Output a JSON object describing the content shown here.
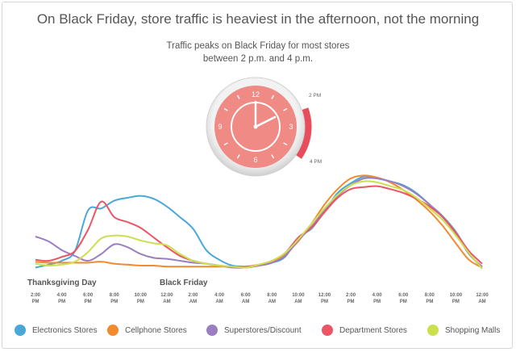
{
  "title": "On Black Friday, store traffic is heaviest in the afternoon, not the morning",
  "subtitle_line1": "Traffic peaks on Black Friday for most stores",
  "subtitle_line2": "between 2 p.m. and 4 p.m.",
  "clock": {
    "numbers": [
      "12",
      "3",
      "6",
      "9"
    ],
    "label_start": "2 PM",
    "label_end": "4 PM",
    "face_color": "#f08a84",
    "highlight_color": "#e84d5b"
  },
  "chart_data": {
    "type": "line",
    "title": "On Black Friday, store traffic is heaviest in the afternoon, not the morning",
    "xlabel": "",
    "ylabel": "",
    "day_labels": [
      "Thanksgiving Day",
      "Black Friday"
    ],
    "ticks": [
      {
        "top": "2:00",
        "bottom": "PM"
      },
      {
        "top": "4:00",
        "bottom": "PM"
      },
      {
        "top": "6:00",
        "bottom": "PM"
      },
      {
        "top": "8:00",
        "bottom": "PM"
      },
      {
        "top": "10:00",
        "bottom": "PM"
      },
      {
        "top": "12:00",
        "bottom": "AM"
      },
      {
        "top": "2:00",
        "bottom": "AM"
      },
      {
        "top": "4:00",
        "bottom": "AM"
      },
      {
        "top": "6:00",
        "bottom": "AM"
      },
      {
        "top": "8:00",
        "bottom": "AM"
      },
      {
        "top": "10:00",
        "bottom": "AM"
      },
      {
        "top": "12:00",
        "bottom": "PM"
      },
      {
        "top": "2:00",
        "bottom": "PM"
      },
      {
        "top": "4:00",
        "bottom": "PM"
      },
      {
        "top": "6:00",
        "bottom": "PM"
      },
      {
        "top": "8:00",
        "bottom": "PM"
      },
      {
        "top": "10:00",
        "bottom": "PM"
      },
      {
        "top": "12:00",
        "bottom": "AM"
      }
    ],
    "x": [
      0,
      1,
      2,
      3,
      4,
      5,
      6,
      7,
      8,
      9,
      10,
      11,
      12,
      13,
      14,
      15,
      16,
      17,
      18,
      19,
      20,
      21,
      22,
      23,
      24,
      25,
      26,
      27,
      28,
      29,
      30,
      31,
      32,
      33,
      34
    ],
    "ylim": [
      0,
      100
    ],
    "series": [
      {
        "name": "Electronics Stores",
        "color": "#4aa8d8",
        "values": [
          3,
          6,
          10,
          20,
          62,
          64,
          72,
          75,
          77,
          74,
          66,
          55,
          43,
          21,
          11,
          5,
          4,
          5,
          8,
          14,
          34,
          43,
          61,
          80,
          90,
          97,
          95,
          92,
          88,
          80,
          68,
          56,
          40,
          18,
          2
        ]
      },
      {
        "name": "Cellphone Stores",
        "color": "#f28a30",
        "values": [
          9,
          8,
          8,
          8,
          8,
          9,
          7,
          6,
          5,
          5,
          4,
          4,
          4,
          4,
          4,
          4,
          3,
          5,
          8,
          17,
          30,
          48,
          68,
          84,
          95,
          98,
          96,
          91,
          83,
          73,
          61,
          46,
          28,
          11,
          3
        ]
      },
      {
        "name": "Superstores/Discount",
        "color": "#9b7ec1",
        "values": [
          35,
          30,
          21,
          15,
          10,
          17,
          27,
          24,
          17,
          13,
          12,
          10,
          8,
          7,
          5,
          3,
          3,
          5,
          8,
          15,
          31,
          45,
          62,
          77,
          88,
          95,
          95,
          92,
          87,
          79,
          68,
          55,
          38,
          17,
          4
        ]
      },
      {
        "name": "Department Stores",
        "color": "#ec5564",
        "values": [
          11,
          10,
          14,
          20,
          42,
          71,
          55,
          50,
          44,
          34,
          24,
          15,
          10,
          7,
          5,
          4,
          4,
          6,
          10,
          18,
          34,
          44,
          60,
          75,
          84,
          86,
          87,
          84,
          80,
          74,
          66,
          55,
          39,
          20,
          7
        ]
      },
      {
        "name": "Shopping Malls",
        "color": "#ccdf4e",
        "values": [
          7,
          5,
          6,
          9,
          19,
          33,
          36,
          35,
          31,
          28,
          26,
          17,
          10,
          7,
          5,
          4,
          3,
          6,
          10,
          18,
          32,
          48,
          64,
          78,
          88,
          92,
          91,
          87,
          83,
          75,
          64,
          52,
          36,
          18,
          2
        ]
      }
    ]
  }
}
